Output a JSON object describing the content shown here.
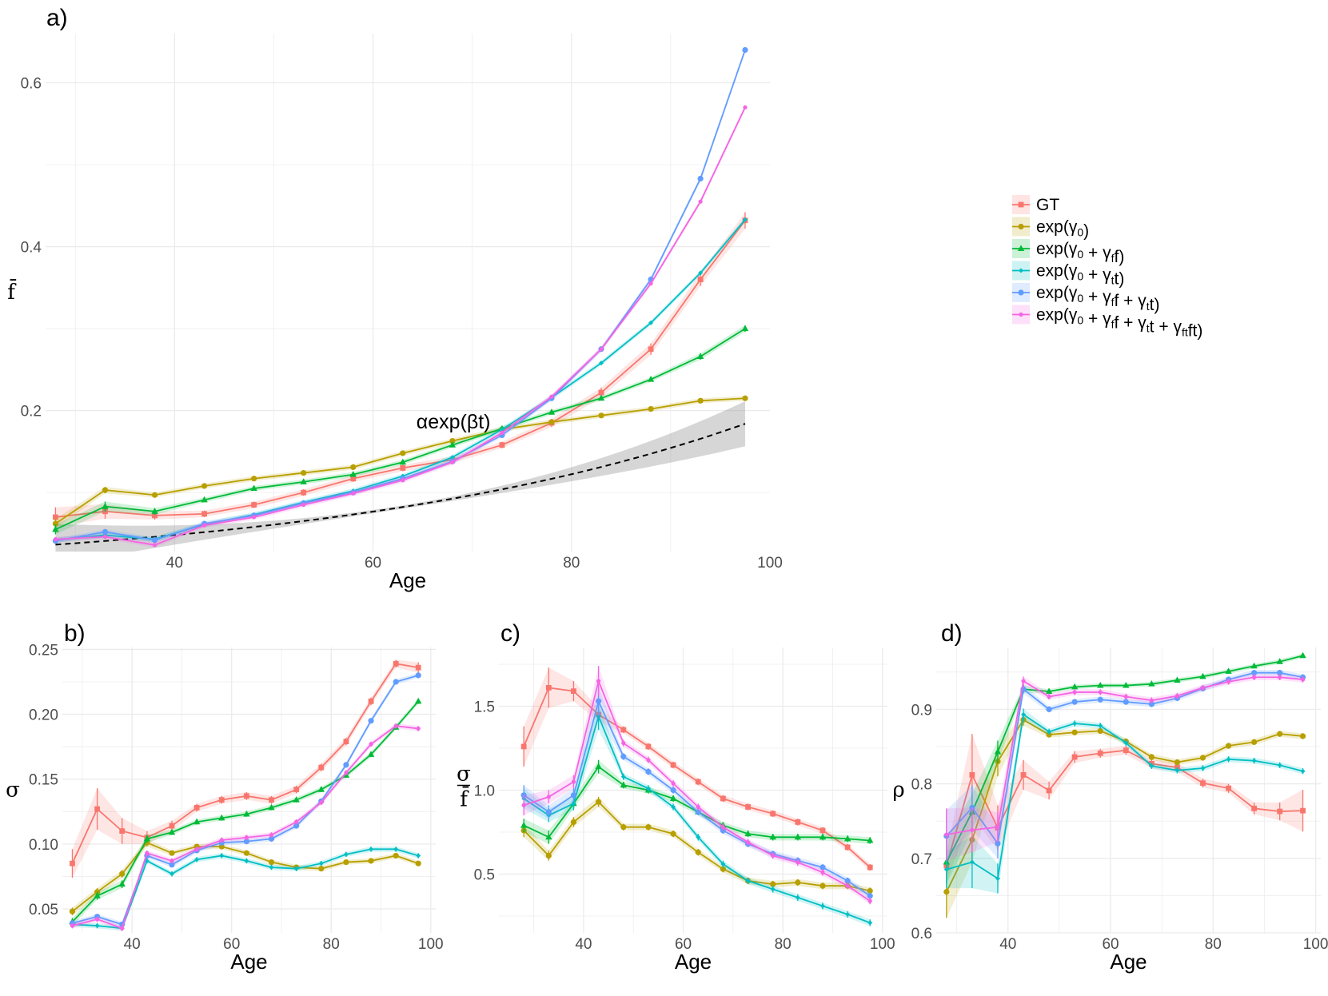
{
  "colors": {
    "GT": "#F8766D",
    "g0": "#B79F00",
    "g0f": "#00BA38",
    "g0t": "#00BFC4",
    "g0ft": "#619CFF",
    "g0ftx": "#F564E3",
    "grid": "#ebebeb",
    "fit": "#000000"
  },
  "legend": [
    {
      "key": "GT",
      "label": "GT",
      "marker": "square"
    },
    {
      "key": "g0",
      "label": "exp(γ0)",
      "marker": "circle"
    },
    {
      "key": "g0f",
      "label": "exp(γ0 + γff)",
      "marker": "triangle"
    },
    {
      "key": "g0t",
      "label": "exp(γ0 + γtt)",
      "marker": "diamond"
    },
    {
      "key": "g0ft",
      "label": "exp(γ0 + γff + γtt)",
      "marker": "circle"
    },
    {
      "key": "g0ftx",
      "label": "exp(γ0 + γff + γtt + γftft)",
      "marker": "dot"
    }
  ],
  "chart_data": [
    {
      "panel": "a)",
      "type": "line",
      "xlabel": "Age",
      "ylabel": "f̄",
      "xlim": [
        27,
        100
      ],
      "ylim": [
        0.028,
        0.66
      ],
      "xticks": [
        40,
        60,
        80,
        100
      ],
      "yticks": [
        0.2,
        0.4,
        0.6
      ],
      "ytick_labels": [
        "0.2",
        "0.4",
        "0.6"
      ],
      "annotation": {
        "text": "αexp(βt)",
        "x": 72,
        "y": 0.183
      },
      "fit": {
        "label": "αexp(βt)",
        "alpha": 0.036,
        "beta": 0.0233,
        "x_range": [
          28,
          97.5
        ],
        "band": 0.0255
      },
      "x": [
        28,
        33,
        38,
        43,
        48,
        53,
        58,
        63,
        68,
        73,
        78,
        83,
        88,
        93,
        97.5
      ],
      "series": [
        {
          "key": "GT",
          "values": [
            0.07,
            0.077,
            0.072,
            0.074,
            0.085,
            0.1,
            0.117,
            0.13,
            0.14,
            0.158,
            0.185,
            0.222,
            0.275,
            0.36,
            0.432
          ],
          "band": [
            0.012,
            0.009,
            0.005,
            0.004,
            0.004,
            0.004,
            0.004,
            0.004,
            0.004,
            0.004,
            0.005,
            0.006,
            0.007,
            0.008,
            0.01
          ]
        },
        {
          "key": "g0",
          "values": [
            0.062,
            0.103,
            0.097,
            0.108,
            0.117,
            0.124,
            0.131,
            0.148,
            0.163,
            0.177,
            0.186,
            0.194,
            0.202,
            0.212,
            0.215
          ],
          "band": [
            0.006,
            0.004,
            0.003,
            0.003,
            0.003,
            0.003,
            0.003,
            0.003,
            0.003,
            0.003,
            0.003,
            0.003,
            0.003,
            0.003,
            0.003
          ]
        },
        {
          "key": "g0f",
          "values": [
            0.055,
            0.083,
            0.077,
            0.091,
            0.105,
            0.113,
            0.122,
            0.137,
            0.158,
            0.178,
            0.198,
            0.215,
            0.238,
            0.266,
            0.3
          ],
          "band": [
            0.006,
            0.006,
            0.004,
            0.003,
            0.003,
            0.003,
            0.003,
            0.003,
            0.003,
            0.003,
            0.003,
            0.003,
            0.003,
            0.004,
            0.004
          ]
        },
        {
          "key": "g0t",
          "values": [
            0.042,
            0.048,
            0.043,
            0.061,
            0.073,
            0.088,
            0.102,
            0.12,
            0.143,
            0.177,
            0.216,
            0.258,
            0.307,
            0.368,
            0.433
          ],
          "band": [
            0.003,
            0.003,
            0.003,
            0.003,
            0.003,
            0.003,
            0.003,
            0.003,
            0.003,
            0.003,
            0.003,
            0.003,
            0.003,
            0.003,
            0.003
          ]
        },
        {
          "key": "g0ft",
          "values": [
            0.041,
            0.052,
            0.042,
            0.062,
            0.072,
            0.087,
            0.1,
            0.117,
            0.138,
            0.17,
            0.215,
            0.275,
            0.36,
            0.483,
            0.64
          ],
          "band": [
            0.003,
            0.003,
            0.003,
            0.003,
            0.003,
            0.003,
            0.003,
            0.003,
            0.003,
            0.003,
            0.003,
            0.003,
            0.003,
            0.003,
            0.003
          ]
        },
        {
          "key": "g0ftx",
          "values": [
            0.043,
            0.046,
            0.036,
            0.06,
            0.07,
            0.085,
            0.099,
            0.115,
            0.137,
            0.173,
            0.217,
            0.275,
            0.355,
            0.455,
            0.57
          ],
          "band": [
            0.003,
            0.003,
            0.003,
            0.003,
            0.003,
            0.003,
            0.003,
            0.003,
            0.003,
            0.003,
            0.003,
            0.003,
            0.003,
            0.003,
            0.003
          ]
        }
      ]
    },
    {
      "panel": "b)",
      "type": "line",
      "xlabel": "Age",
      "ylabel": "σ",
      "xlim": [
        26,
        101
      ],
      "ylim": [
        0.0315,
        0.2515
      ],
      "xticks": [
        40,
        60,
        80,
        100
      ],
      "yticks": [
        0.05,
        0.1,
        0.15,
        0.2,
        0.25
      ],
      "ytick_labels": [
        "0.05",
        "0.10",
        "0.15",
        "0.20",
        "0.25"
      ],
      "x": [
        28,
        33,
        38,
        43,
        48,
        53,
        58,
        63,
        68,
        73,
        78,
        83,
        88,
        93,
        97.5
      ],
      "series": [
        {
          "key": "GT",
          "values": [
            0.085,
            0.127,
            0.11,
            0.105,
            0.114,
            0.128,
            0.134,
            0.137,
            0.134,
            0.142,
            0.159,
            0.179,
            0.21,
            0.239,
            0.236
          ],
          "band": [
            0.011,
            0.016,
            0.01,
            0.005,
            0.004,
            0.003,
            0.003,
            0.003,
            0.003,
            0.003,
            0.003,
            0.003,
            0.003,
            0.003,
            0.004
          ]
        },
        {
          "key": "g0",
          "values": [
            0.048,
            0.063,
            0.077,
            0.101,
            0.093,
            0.098,
            0.098,
            0.093,
            0.086,
            0.082,
            0.081,
            0.086,
            0.087,
            0.091,
            0.085
          ],
          "band": [
            0.003,
            0.003,
            0.003,
            0.003,
            0.002,
            0.002,
            0.002,
            0.002,
            0.002,
            0.002,
            0.002,
            0.002,
            0.002,
            0.002,
            0.002
          ]
        },
        {
          "key": "g0f",
          "values": [
            0.04,
            0.06,
            0.069,
            0.104,
            0.109,
            0.117,
            0.12,
            0.123,
            0.128,
            0.134,
            0.142,
            0.153,
            0.169,
            0.19,
            0.21
          ],
          "band": [
            0.003,
            0.003,
            0.003,
            0.003,
            0.002,
            0.002,
            0.002,
            0.002,
            0.002,
            0.002,
            0.002,
            0.002,
            0.002,
            0.002,
            0.002
          ]
        },
        {
          "key": "g0t",
          "values": [
            0.038,
            0.037,
            0.035,
            0.087,
            0.077,
            0.088,
            0.091,
            0.087,
            0.082,
            0.081,
            0.085,
            0.092,
            0.096,
            0.096,
            0.091
          ],
          "band": [
            0.002,
            0.002,
            0.002,
            0.002,
            0.002,
            0.002,
            0.002,
            0.002,
            0.002,
            0.002,
            0.002,
            0.002,
            0.002,
            0.002,
            0.002
          ]
        },
        {
          "key": "g0ft",
          "values": [
            0.039,
            0.044,
            0.038,
            0.091,
            0.084,
            0.095,
            0.101,
            0.102,
            0.104,
            0.114,
            0.133,
            0.161,
            0.195,
            0.225,
            0.23
          ],
          "band": [
            0.002,
            0.002,
            0.002,
            0.002,
            0.002,
            0.002,
            0.002,
            0.002,
            0.002,
            0.002,
            0.002,
            0.002,
            0.002,
            0.002,
            0.002
          ]
        },
        {
          "key": "g0ftx",
          "values": [
            0.037,
            0.042,
            0.035,
            0.093,
            0.087,
            0.096,
            0.103,
            0.105,
            0.107,
            0.117,
            0.132,
            0.155,
            0.177,
            0.191,
            0.189
          ],
          "band": [
            0.002,
            0.002,
            0.002,
            0.002,
            0.002,
            0.002,
            0.002,
            0.002,
            0.002,
            0.002,
            0.002,
            0.002,
            0.002,
            0.002,
            0.002
          ]
        }
      ]
    },
    {
      "panel": "c)",
      "type": "line",
      "xlabel": "Age",
      "ylabel": "σ / f̄",
      "ylabel_num": "σ",
      "ylabel_den": "f̄",
      "xlim": [
        23,
        101
      ],
      "ylim": [
        0.15,
        1.85
      ],
      "xticks": [
        40,
        60,
        80,
        100
      ],
      "yticks": [
        0.5,
        1.0,
        1.5
      ],
      "ytick_labels": [
        "0.5",
        "1.0",
        "1.5"
      ],
      "x": [
        28,
        33,
        38,
        43,
        48,
        53,
        58,
        63,
        68,
        73,
        78,
        83,
        88,
        93,
        97.5
      ],
      "series": [
        {
          "key": "GT",
          "values": [
            1.26,
            1.61,
            1.59,
            1.45,
            1.36,
            1.26,
            1.15,
            1.05,
            0.95,
            0.9,
            0.86,
            0.81,
            0.76,
            0.66,
            0.54
          ],
          "band": [
            0.12,
            0.12,
            0.06,
            0.04,
            0.02,
            0.02,
            0.02,
            0.02,
            0.02,
            0.02,
            0.02,
            0.02,
            0.02,
            0.02,
            0.02
          ]
        },
        {
          "key": "g0",
          "values": [
            0.76,
            0.61,
            0.81,
            0.93,
            0.78,
            0.78,
            0.74,
            0.63,
            0.53,
            0.46,
            0.44,
            0.45,
            0.43,
            0.43,
            0.4
          ],
          "band": [
            0.04,
            0.03,
            0.03,
            0.03,
            0.02,
            0.02,
            0.02,
            0.02,
            0.02,
            0.02,
            0.02,
            0.02,
            0.02,
            0.02,
            0.02
          ]
        },
        {
          "key": "g0f",
          "values": [
            0.79,
            0.72,
            0.92,
            1.14,
            1.03,
            1.0,
            0.95,
            0.87,
            0.79,
            0.74,
            0.72,
            0.72,
            0.72,
            0.71,
            0.7
          ],
          "band": [
            0.04,
            0.04,
            0.03,
            0.04,
            0.02,
            0.02,
            0.02,
            0.02,
            0.02,
            0.02,
            0.02,
            0.02,
            0.02,
            0.02,
            0.02
          ]
        },
        {
          "key": "g0t",
          "values": [
            0.95,
            0.85,
            0.92,
            1.44,
            1.08,
            1.01,
            0.9,
            0.72,
            0.56,
            0.46,
            0.41,
            0.36,
            0.31,
            0.26,
            0.21
          ],
          "band": [
            0.06,
            0.04,
            0.04,
            0.08,
            0.02,
            0.02,
            0.02,
            0.02,
            0.02,
            0.02,
            0.02,
            0.02,
            0.02,
            0.02,
            0.02
          ]
        },
        {
          "key": "g0ft",
          "values": [
            0.97,
            0.87,
            0.97,
            1.53,
            1.2,
            1.11,
            1.0,
            0.87,
            0.76,
            0.68,
            0.62,
            0.58,
            0.54,
            0.46,
            0.37
          ],
          "band": [
            0.06,
            0.04,
            0.04,
            0.09,
            0.02,
            0.02,
            0.02,
            0.02,
            0.02,
            0.02,
            0.02,
            0.02,
            0.02,
            0.02,
            0.02
          ]
        },
        {
          "key": "g0ftx",
          "values": [
            0.91,
            0.96,
            1.05,
            1.65,
            1.28,
            1.18,
            1.04,
            0.9,
            0.78,
            0.69,
            0.61,
            0.57,
            0.51,
            0.43,
            0.34
          ],
          "band": [
            0.06,
            0.04,
            0.04,
            0.09,
            0.02,
            0.02,
            0.02,
            0.02,
            0.02,
            0.02,
            0.02,
            0.02,
            0.02,
            0.02,
            0.02
          ]
        }
      ]
    },
    {
      "panel": "d)",
      "type": "line",
      "xlabel": "Age",
      "ylabel": "ρ",
      "xlim": [
        26,
        101
      ],
      "ylim": [
        0.6,
        0.983
      ],
      "xticks": [
        40,
        60,
        80,
        100
      ],
      "yticks": [
        0.6,
        0.7,
        0.8,
        0.9
      ],
      "ytick_labels": [
        "0.6",
        "0.7",
        "0.8",
        "0.9"
      ],
      "x": [
        28,
        33,
        38,
        43,
        48,
        53,
        58,
        63,
        68,
        73,
        78,
        83,
        88,
        93,
        97.5
      ],
      "series": [
        {
          "key": "GT",
          "values": [
            0.69,
            0.812,
            0.741,
            0.812,
            0.791,
            0.836,
            0.841,
            0.845,
            0.827,
            0.822,
            0.801,
            0.794,
            0.767,
            0.763,
            0.764
          ],
          "band": [
            0.02,
            0.055,
            0.03,
            0.02,
            0.012,
            0.008,
            0.006,
            0.006,
            0.006,
            0.006,
            0.006,
            0.006,
            0.008,
            0.012,
            0.028
          ]
        },
        {
          "key": "g0",
          "values": [
            0.655,
            0.725,
            0.83,
            0.886,
            0.866,
            0.869,
            0.871,
            0.857,
            0.836,
            0.829,
            0.835,
            0.851,
            0.856,
            0.867,
            0.864
          ],
          "band": [
            0.035,
            0.03,
            0.02,
            0.008,
            0.004,
            0.004,
            0.004,
            0.004,
            0.004,
            0.004,
            0.004,
            0.004,
            0.004,
            0.004,
            0.004
          ]
        },
        {
          "key": "g0f",
          "values": [
            0.695,
            0.762,
            0.843,
            0.927,
            0.924,
            0.93,
            0.932,
            0.932,
            0.934,
            0.939,
            0.944,
            0.951,
            0.958,
            0.964,
            0.972
          ],
          "band": [
            0.03,
            0.025,
            0.015,
            0.005,
            0.003,
            0.003,
            0.003,
            0.003,
            0.003,
            0.003,
            0.003,
            0.003,
            0.003,
            0.003,
            0.003
          ]
        },
        {
          "key": "g0t",
          "values": [
            0.685,
            0.695,
            0.673,
            0.893,
            0.87,
            0.881,
            0.878,
            0.855,
            0.824,
            0.818,
            0.821,
            0.833,
            0.831,
            0.825,
            0.817
          ],
          "band": [
            0.025,
            0.035,
            0.02,
            0.008,
            0.004,
            0.004,
            0.004,
            0.004,
            0.004,
            0.004,
            0.004,
            0.004,
            0.004,
            0.004,
            0.004
          ]
        },
        {
          "key": "g0ft",
          "values": [
            0.73,
            0.768,
            0.72,
            0.927,
            0.9,
            0.91,
            0.913,
            0.91,
            0.907,
            0.915,
            0.928,
            0.94,
            0.949,
            0.949,
            0.943
          ],
          "band": [
            0.035,
            0.03,
            0.02,
            0.006,
            0.004,
            0.004,
            0.004,
            0.004,
            0.004,
            0.004,
            0.004,
            0.004,
            0.004,
            0.004,
            0.004
          ]
        },
        {
          "key": "g0ftx",
          "values": [
            0.732,
            0.738,
            0.742,
            0.938,
            0.917,
            0.923,
            0.923,
            0.917,
            0.912,
            0.918,
            0.929,
            0.937,
            0.943,
            0.943,
            0.94
          ],
          "band": [
            0.035,
            0.03,
            0.02,
            0.006,
            0.004,
            0.004,
            0.004,
            0.004,
            0.004,
            0.004,
            0.004,
            0.004,
            0.004,
            0.004,
            0.004
          ]
        }
      ]
    }
  ]
}
